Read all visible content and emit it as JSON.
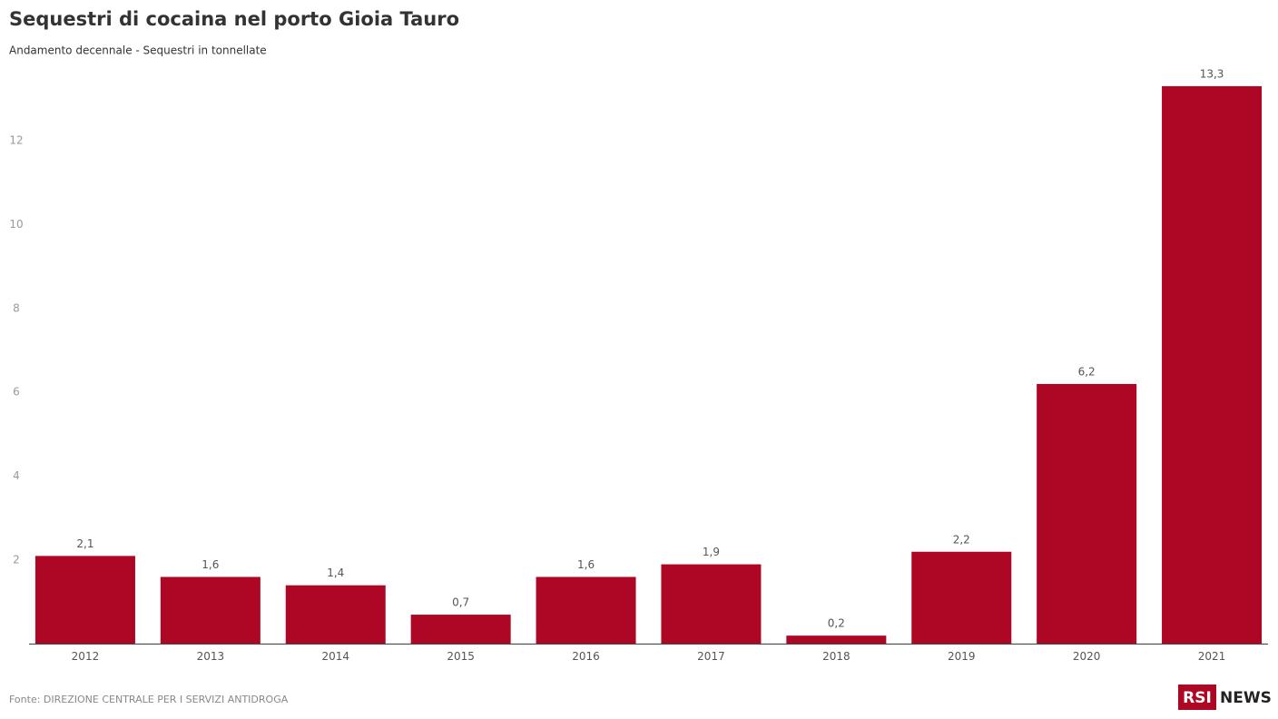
{
  "chart_data": {
    "type": "bar",
    "title": "Sequestri di cocaina nel porto Gioia Tauro",
    "subtitle": "Andamento decennale - Sequestri in tonnellate",
    "categories": [
      "2012",
      "2013",
      "2014",
      "2015",
      "2016",
      "2017",
      "2018",
      "2019",
      "2020",
      "2021"
    ],
    "values": [
      2.1,
      1.6,
      1.4,
      0.7,
      1.6,
      1.9,
      0.2,
      2.2,
      6.2,
      13.3
    ],
    "value_labels": [
      "2,1",
      "1,6",
      "1,4",
      "0,7",
      "1,6",
      "1,9",
      "0,2",
      "2,2",
      "6,2",
      "13,3"
    ],
    "color": "#ae0625",
    "ylim": [
      0,
      14
    ],
    "yticks": [
      2,
      4,
      6,
      8,
      10,
      12
    ],
    "grid": false,
    "source": "Fonte: DIREZIONE CENTRALE PER I SERVIZI ANTIDROGA",
    "logo": {
      "brand": "RSI",
      "label": "NEWS"
    }
  }
}
